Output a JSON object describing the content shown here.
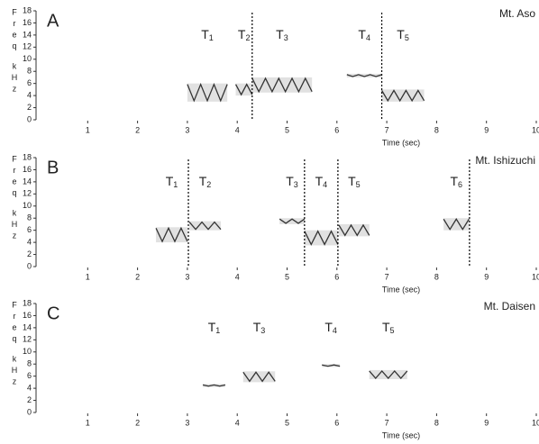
{
  "chart_data": [
    {
      "type": "spectrogram",
      "panel": "A",
      "site": "Mt. Aso",
      "xlabel": "Time (sec)",
      "ylabel": [
        "F",
        "r",
        "e",
        "q",
        "k",
        "H",
        "z"
      ],
      "xlim": [
        0,
        10
      ],
      "xticks": [
        1,
        2,
        3,
        4,
        5,
        6,
        7,
        8,
        9,
        10
      ],
      "ylim": [
        0,
        18
      ],
      "yticks": [
        0,
        2,
        4,
        6,
        8,
        10,
        12,
        14,
        16,
        18
      ],
      "syllables": [
        {
          "name": "T",
          "sub": "1",
          "start": 3.0,
          "end": 3.8,
          "low": 3,
          "high": 6
        },
        {
          "name": "T",
          "sub": "2",
          "start": 3.97,
          "end": 4.3,
          "low": 4,
          "high": 6
        },
        {
          "name": "T",
          "sub": "3",
          "start": 4.3,
          "end": 5.5,
          "low": 4.5,
          "high": 7
        },
        {
          "name": "T",
          "sub": "4",
          "start": 6.2,
          "end": 6.9,
          "low": 7,
          "high": 7.6
        },
        {
          "name": "T",
          "sub": "5",
          "start": 6.9,
          "end": 7.75,
          "low": 3,
          "high": 5
        }
      ],
      "boundaries": [
        4.3,
        6.9
      ]
    },
    {
      "type": "spectrogram",
      "panel": "B",
      "site": "Mt. Ishizuchi",
      "xlabel": "Time (sec)",
      "ylabel": [
        "F",
        "r",
        "e",
        "q",
        "k",
        "H",
        "z"
      ],
      "xlim": [
        0,
        10
      ],
      "xticks": [
        1,
        2,
        3,
        4,
        5,
        6,
        7,
        8,
        9,
        10
      ],
      "ylim": [
        0,
        18
      ],
      "yticks": [
        0,
        2,
        4,
        6,
        8,
        10,
        12,
        14,
        16,
        18
      ],
      "syllables": [
        {
          "name": "T",
          "sub": "1",
          "start": 2.37,
          "end": 3.0,
          "low": 4,
          "high": 6.5
        },
        {
          "name": "T",
          "sub": "2",
          "start": 3.04,
          "end": 3.67,
          "low": 6,
          "high": 7.5
        },
        {
          "name": "T",
          "sub": "3",
          "start": 4.85,
          "end": 5.35,
          "low": 7,
          "high": 8
        },
        {
          "name": "T",
          "sub": "4",
          "start": 5.35,
          "end": 6.02,
          "low": 3.5,
          "high": 6
        },
        {
          "name": "T",
          "sub": "5",
          "start": 6.04,
          "end": 6.65,
          "low": 5,
          "high": 7
        },
        {
          "name": "T",
          "sub": "6",
          "start": 8.14,
          "end": 8.65,
          "low": 6,
          "high": 8
        }
      ],
      "boundaries": [
        3.02,
        5.35,
        6.02,
        8.66
      ]
    },
    {
      "type": "spectrogram",
      "panel": "C",
      "site": "Mt. Daisen",
      "xlabel": "Time (sec)",
      "ylabel": [
        "F",
        "r",
        "e",
        "q",
        "k",
        "H",
        "z"
      ],
      "xlim": [
        0,
        10
      ],
      "xticks": [
        1,
        2,
        3,
        4,
        5,
        6,
        7,
        8,
        9,
        10
      ],
      "ylim": [
        0,
        18
      ],
      "yticks": [
        0,
        2,
        4,
        6,
        8,
        10,
        12,
        14,
        16,
        18
      ],
      "syllables": [
        {
          "name": "T",
          "sub": "1",
          "start": 3.31,
          "end": 3.76,
          "low": 4.2,
          "high": 4.7
        },
        {
          "name": "T",
          "sub": "3",
          "start": 4.12,
          "end": 4.76,
          "low": 5,
          "high": 6.8
        },
        {
          "name": "T",
          "sub": "4",
          "start": 5.7,
          "end": 6.06,
          "low": 7.5,
          "high": 8
        },
        {
          "name": "T",
          "sub": "5",
          "start": 6.65,
          "end": 7.41,
          "low": 5.5,
          "high": 7
        }
      ],
      "boundaries": []
    }
  ]
}
